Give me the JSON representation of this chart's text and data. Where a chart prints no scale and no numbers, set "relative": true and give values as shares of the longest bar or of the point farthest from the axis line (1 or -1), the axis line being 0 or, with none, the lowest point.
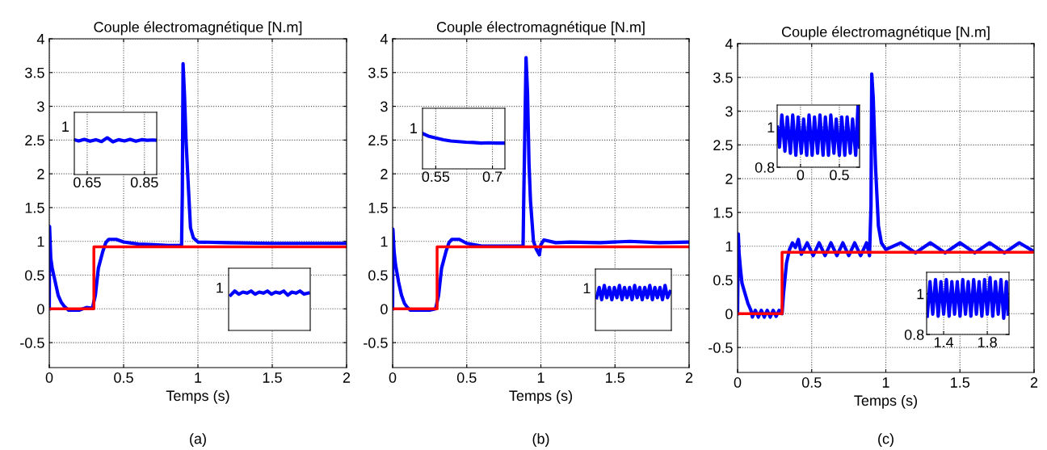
{
  "chart_data": [
    {
      "type": "line",
      "title": "Couple électromagnétique [N.m]",
      "xlabel": "Temps (s)",
      "annotations": [
        "(a)"
      ],
      "xlim": [
        0,
        2
      ],
      "ylim": [
        -0.87,
        4
      ],
      "xticks": [
        0,
        0.5,
        1,
        1.5,
        2
      ],
      "yticks": [
        -0.5,
        0,
        0.5,
        1,
        1.5,
        2,
        2.5,
        3,
        3.5,
        4
      ],
      "grid": true,
      "series": [
        {
          "color": "#0000ff",
          "x": [
            0,
            0.002,
            0.01,
            0.02,
            0.04,
            0.06,
            0.08,
            0.1,
            0.13,
            0.2,
            0.25,
            0.29,
            0.31,
            0.33,
            0.36,
            0.38,
            0.4,
            0.45,
            0.5,
            0.6,
            0.7,
            0.8,
            0.89,
            0.895,
            0.9,
            0.91,
            0.92,
            0.93,
            0.95,
            0.97,
            1.0,
            1.2,
            1.5,
            2.0
          ],
          "values": [
            0,
            1.22,
            0.75,
            0.6,
            0.4,
            0.2,
            0.1,
            0.04,
            -0.02,
            -0.02,
            0.02,
            0.01,
            0.2,
            0.6,
            0.85,
            0.98,
            1.03,
            1.03,
            0.99,
            0.96,
            0.95,
            0.94,
            0.94,
            1.7,
            3.63,
            3.15,
            2.5,
            2.05,
            1.2,
            1.05,
            0.99,
            0.98,
            0.97,
            0.97
          ]
        },
        {
          "color": "#ff0000",
          "x": [
            0,
            0.3,
            0.3,
            2
          ],
          "values": [
            0,
            0,
            0.92,
            0.92
          ]
        }
      ]
    },
    {
      "type": "line",
      "relative": true,
      "annotations": [
        "1"
      ],
      "xlim": [
        0.605,
        0.893
      ],
      "xticks": [
        0.65,
        0.85
      ],
      "grid": "x",
      "series": [
        {
          "color": "#0000ff",
          "x": [
            0.605,
            0.62,
            0.64,
            0.66,
            0.68,
            0.7,
            0.72,
            0.74,
            0.76,
            0.78,
            0.8,
            0.82,
            0.84,
            0.86,
            0.88,
            0.893
          ],
          "values": [
            0.949,
            0.915,
            0.958,
            0.907,
            0.949,
            0.898,
            1,
            0.89,
            0.949,
            0.915,
            0.958,
            0.907,
            0.949,
            0.932,
            0.941,
            0.932
          ]
        }
      ]
    },
    {
      "type": "line",
      "relative": true,
      "annotations": [
        "1"
      ],
      "categories": [
        null,
        null,
        null,
        null,
        null,
        null,
        null,
        null,
        null,
        null,
        null,
        null,
        null,
        null,
        null,
        null,
        null,
        null,
        null,
        null
      ],
      "series": [
        {
          "color": "#0000ff",
          "values": [
            0.895,
            1,
            0.921,
            0.974,
            0.947,
            1,
            0.921,
            0.974,
            0.947,
            1,
            0.921,
            0.974,
            0.947,
            1,
            0.895,
            0.974,
            0.947,
            1,
            0.921,
            0.947
          ]
        }
      ]
    },
    {
      "type": "line",
      "title": "Couple électromagnétique [N.m]",
      "xlabel": "Temps (s)",
      "annotations": [
        "(b)"
      ],
      "xlim": [
        0,
        2
      ],
      "ylim": [
        -0.87,
        4
      ],
      "xticks": [
        0,
        0.5,
        1,
        1.5,
        2
      ],
      "yticks": [
        -0.5,
        0,
        0.5,
        1,
        1.5,
        2,
        2.5,
        3,
        3.5,
        4
      ],
      "grid": true,
      "series": [
        {
          "color": "#0000ff",
          "x": [
            0,
            0.002,
            0.01,
            0.02,
            0.04,
            0.06,
            0.08,
            0.1,
            0.12,
            0.2,
            0.25,
            0.29,
            0.31,
            0.33,
            0.36,
            0.38,
            0.4,
            0.45,
            0.5,
            0.6,
            0.7,
            0.8,
            0.88,
            0.885,
            0.9,
            0.91,
            0.92,
            0.93,
            0.95,
            0.97,
            0.99,
            1.0,
            1.02,
            1.1,
            1.2,
            1.4,
            1.6,
            1.8,
            2.0
          ],
          "values": [
            0,
            1.18,
            0.85,
            0.65,
            0.4,
            0.2,
            0.08,
            0.02,
            -0.02,
            -0.02,
            -0.02,
            0.0,
            0.2,
            0.6,
            0.85,
            0.98,
            1.03,
            1.03,
            0.97,
            0.93,
            0.93,
            0.93,
            0.93,
            1.7,
            3.72,
            3.2,
            2.15,
            1.6,
            1.0,
            0.88,
            0.8,
            0.95,
            1.02,
            0.98,
            0.99,
            0.98,
            1.0,
            0.98,
            0.99
          ]
        },
        {
          "color": "#ff0000",
          "x": [
            0,
            0.3,
            0.3,
            2
          ],
          "values": [
            0,
            0,
            0.92,
            0.92
          ]
        }
      ]
    },
    {
      "type": "line",
      "relative": true,
      "annotations": [
        "1"
      ],
      "xlim": [
        0.515,
        0.733
      ],
      "xticks": [
        0.55,
        0.7
      ],
      "grid": "x",
      "series": [
        {
          "color": "#0000ff",
          "x": [
            0.515,
            0.53,
            0.55,
            0.57,
            0.59,
            0.61,
            0.63,
            0.65,
            0.67,
            0.69,
            0.71,
            0.733
          ],
          "values": [
            1,
            0.923,
            0.872,
            0.821,
            0.786,
            0.769,
            0.752,
            0.744,
            0.726,
            0.735,
            0.726,
            0.726
          ]
        }
      ]
    },
    {
      "type": "line",
      "relative": true,
      "annotations": [
        "1"
      ],
      "categories": [
        null,
        null,
        null,
        null,
        null,
        null,
        null,
        null,
        null,
        null,
        null,
        null,
        null,
        null,
        null,
        null,
        null,
        null,
        null,
        null,
        null,
        null,
        null,
        null,
        null,
        null,
        null,
        null,
        null,
        null
      ],
      "series": [
        {
          "color": "#0000ff",
          "values": [
            0.727,
            0.955,
            0.682,
            1,
            0.727,
            0.955,
            0.682,
            0.955,
            0.727,
            1,
            0.682,
            0.955,
            0.727,
            0.955,
            0.682,
            1,
            0.727,
            0.955,
            0.682,
            0.955,
            0.727,
            1,
            0.682,
            0.955,
            0.727,
            0.955,
            0.682,
            1,
            0.727,
            0.864
          ]
        }
      ]
    },
    {
      "type": "line",
      "title": "Couple électromagnétique [N.m]",
      "xlabel": "Temps (s)",
      "annotations": [
        "(c)"
      ],
      "xlim": [
        0,
        2
      ],
      "ylim": [
        -0.87,
        4
      ],
      "xticks": [
        0,
        0.5,
        1,
        1.5,
        2
      ],
      "yticks": [
        -0.5,
        0,
        0.5,
        1,
        1.5,
        2,
        2.5,
        3,
        3.5,
        4
      ],
      "grid": true,
      "series": [
        {
          "color": "#0000ff",
          "x": [
            0,
            0.005,
            0.01,
            0.02,
            0.03,
            0.05,
            0.07,
            0.09,
            0.1,
            0.12,
            0.14,
            0.16,
            0.18,
            0.2,
            0.22,
            0.24,
            0.26,
            0.28,
            0.3,
            0.31,
            0.33,
            0.35,
            0.37,
            0.39,
            0.41,
            0.43,
            0.47,
            0.51,
            0.55,
            0.59,
            0.63,
            0.67,
            0.71,
            0.75,
            0.79,
            0.83,
            0.87,
            0.89,
            0.9,
            0.905,
            0.915,
            0.93,
            0.95,
            0.97,
            1.0,
            1.1,
            1.2,
            1.3,
            1.4,
            1.5,
            1.6,
            1.7,
            1.8,
            1.9,
            2.0
          ],
          "values": [
            0,
            1.18,
            0.9,
            0.65,
            0.45,
            0.3,
            0.15,
            0.05,
            -0.05,
            0.05,
            -0.05,
            0.05,
            -0.05,
            0.05,
            -0.05,
            0.05,
            -0.04,
            0.05,
            0.0,
            0.3,
            0.75,
            0.95,
            1.05,
            0.98,
            1.1,
            0.88,
            1.05,
            0.86,
            1.05,
            0.86,
            1.05,
            0.86,
            1.05,
            0.86,
            1.05,
            0.86,
            1.05,
            0.86,
            1.6,
            3.55,
            3.2,
            2.2,
            1.3,
            1.05,
            0.95,
            1.05,
            0.9,
            1.05,
            0.9,
            1.05,
            0.9,
            1.05,
            0.9,
            1.05,
            0.92
          ]
        },
        {
          "color": "#ff0000",
          "x": [
            0,
            0.3,
            0.3,
            2
          ],
          "values": [
            0,
            0,
            0.91,
            0.91
          ]
        }
      ]
    },
    {
      "type": "line",
      "xlim": [
        -0.3,
        0.76
      ],
      "xticks": [
        0,
        0.5
      ],
      "ylim": [
        0.8,
        1.11
      ],
      "yticks": [
        1,
        0.8
      ],
      "grid": true,
      "series": [
        {
          "color": "#0000ff",
          "x": [
            -0.3,
            -0.27,
            -0.24,
            -0.2,
            -0.17,
            -0.13,
            -0.1,
            -0.06,
            -0.03,
            0.01,
            0.04,
            0.08,
            0.11,
            0.15,
            0.18,
            0.22,
            0.25,
            0.29,
            0.32,
            0.36,
            0.39,
            0.43,
            0.46,
            0.5,
            0.53,
            0.57,
            0.6,
            0.64,
            0.67,
            0.71,
            0.74,
            0.76
          ],
          "values": [
            1.0,
            0.9,
            1.06,
            0.88,
            1.05,
            0.87,
            1.06,
            0.86,
            1.05,
            0.87,
            1.04,
            0.86,
            1.06,
            0.86,
            1.05,
            0.87,
            1.06,
            0.86,
            1.05,
            0.86,
            1.06,
            0.87,
            1.04,
            0.86,
            1.05,
            0.86,
            1.05,
            0.87,
            1.04,
            0.86,
            1.11,
            0.9
          ]
        }
      ]
    },
    {
      "type": "line",
      "xlim": [
        1.244,
        1.999
      ],
      "xticks": [
        1.4,
        1.8
      ],
      "ylim": [
        0.8,
        1.106
      ],
      "yticks": [
        1,
        0.8
      ],
      "grid": true,
      "series": [
        {
          "color": "#0000ff",
          "x": [
            1.25,
            1.275,
            1.3,
            1.325,
            1.35,
            1.375,
            1.4,
            1.425,
            1.45,
            1.475,
            1.5,
            1.525,
            1.55,
            1.575,
            1.6,
            1.625,
            1.65,
            1.675,
            1.7,
            1.725,
            1.75,
            1.775,
            1.8,
            1.825,
            1.85,
            1.875,
            1.9,
            1.925,
            1.95,
            1.975,
            1.99
          ],
          "values": [
            0.89,
            1.06,
            0.9,
            1.07,
            0.89,
            1.06,
            0.9,
            1.07,
            0.89,
            1.06,
            0.9,
            1.06,
            0.89,
            1.07,
            0.9,
            1.06,
            0.89,
            1.07,
            0.9,
            1.06,
            0.89,
            1.07,
            0.9,
            1.08,
            0.89,
            1.06,
            0.9,
            1.07,
            0.88,
            1.06,
            0.9
          ]
        }
      ]
    }
  ]
}
